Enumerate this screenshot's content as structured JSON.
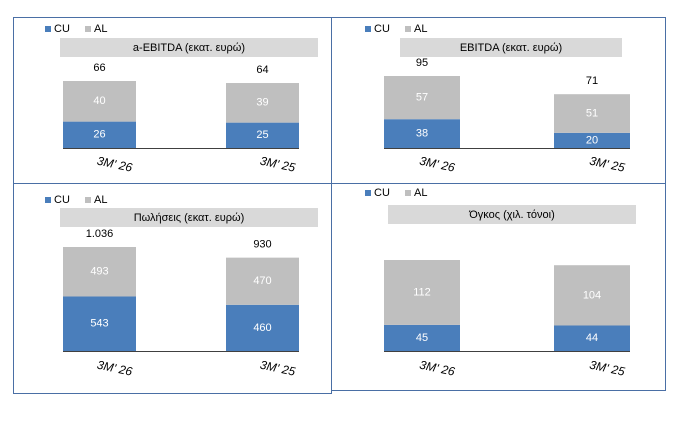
{
  "chart_data": [
    {
      "type": "bar",
      "stacked": true,
      "title": "a-EBITDA (εκατ. ευρώ)",
      "categories": [
        "3M' 26",
        "3M' 25"
      ],
      "series": [
        {
          "name": "CU",
          "color": "#4a7ebb",
          "values": [
            26,
            25
          ]
        },
        {
          "name": "AL",
          "color": "#bfbfbf",
          "values": [
            40,
            39
          ]
        }
      ],
      "totals": {
        "values": [
          66,
          64
        ]
      }
    },
    {
      "type": "bar",
      "stacked": true,
      "title": "EBITDA (εκατ. ευρώ)",
      "categories": [
        "3M' 26",
        "3M' 25"
      ],
      "series": [
        {
          "name": "CU",
          "color": "#4a7ebb",
          "values": [
            38,
            20
          ]
        },
        {
          "name": "AL",
          "color": "#bfbfbf",
          "values": [
            57,
            51
          ]
        }
      ],
      "totals": {
        "values": [
          95,
          71
        ]
      }
    },
    {
      "type": "bar",
      "stacked": true,
      "title": "Πωλήσεις (εκατ. ευρώ)",
      "categories": [
        "3M' 26",
        "3M' 25"
      ],
      "series": [
        {
          "name": "CU",
          "color": "#4a7ebb",
          "values": [
            543,
            460
          ]
        },
        {
          "name": "AL",
          "color": "#bfbfbf",
          "values": [
            493,
            470
          ]
        }
      ],
      "totals": {
        "values": [
          1036,
          930
        ],
        "value_labels": [
          "1.036",
          "930"
        ]
      }
    },
    {
      "type": "bar",
      "stacked": true,
      "title": "Όγκος (χιλ. τόνοι)",
      "categories": [
        "3M' 26",
        "3M' 25"
      ],
      "series": [
        {
          "name": "CU",
          "color": "#4a7ebb",
          "values": [
            45,
            44
          ]
        },
        {
          "name": "AL",
          "color": "#bfbfbf",
          "values": [
            112,
            104
          ]
        }
      ]
    }
  ]
}
